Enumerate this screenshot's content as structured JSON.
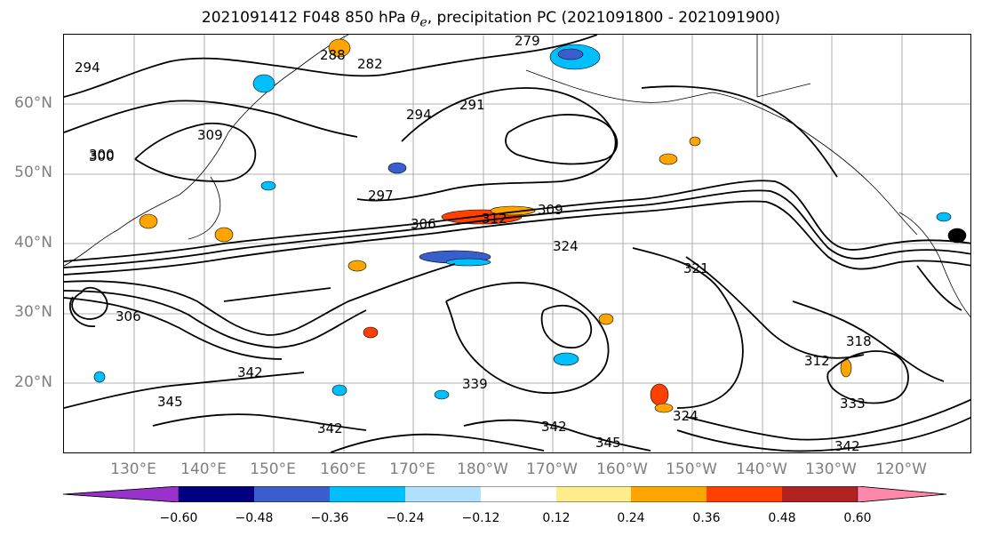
{
  "title_prefix": "2021091412 F048 850 hPa ",
  "title_symbol": "θ",
  "title_subscript": "e",
  "title_suffix": ", precipitation PC (2021091800 - 2021091900)",
  "lat_labels": [
    "60°N",
    "50°N",
    "40°N",
    "30°N",
    "20°N"
  ],
  "lon_labels": [
    "130°E",
    "140°E",
    "150°E",
    "160°E",
    "170°E",
    "180°W",
    "170°W",
    "160°W",
    "150°W",
    "140°W",
    "130°W",
    "120°W"
  ],
  "contour_labels": [
    "294",
    "300",
    "288",
    "282",
    "279",
    "294",
    "291",
    "309",
    "300",
    "297",
    "306",
    "312",
    "309",
    "324",
    "321",
    "342",
    "345",
    "342",
    "339",
    "342",
    "345",
    "324",
    "333",
    "342",
    "312",
    "318",
    "306"
  ],
  "colorbar": {
    "colors": [
      "#9932cc",
      "#000080",
      "#3a5fcd",
      "#00bfff",
      "#b0e2ff",
      "#ffffff",
      "#ffec8b",
      "#ffa500",
      "#ff4000",
      "#b22222",
      "#ff88aa"
    ],
    "ticks": [
      "−0.60",
      "−0.48",
      "−0.36",
      "−0.24",
      "−0.12",
      "0.12",
      "0.24",
      "0.36",
      "0.48",
      "0.60"
    ]
  }
}
